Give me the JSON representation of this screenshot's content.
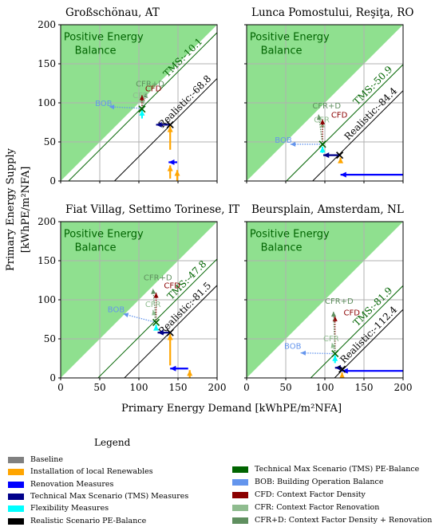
{
  "ylabel_line1": "Primary Energy Supply",
  "ylabel_line2": "[kWhPE/m²NFA]",
  "xlabel": "Primary Energy Demand [kWhPE/m²NFA]",
  "positive_line1": "Positive Energy",
  "positive_line2": "Balance",
  "chart_data": [
    {
      "type": "scatter",
      "title": "Großschönau, AT",
      "xlim": [
        0,
        200
      ],
      "ylim": [
        0,
        200
      ],
      "xticks": [
        "0",
        "50",
        "100",
        "150",
        "200"
      ],
      "yticks": [
        "0",
        "50",
        "100",
        "150",
        "200"
      ],
      "grid": true,
      "tms_label": "TMS:-10.1",
      "realistic_label": "Realistic:-68.8",
      "tms_offset": -10.1,
      "realistic_offset": -68.8,
      "path": [
        {
          "kind": "renewables",
          "from": [
            149,
            0
          ],
          "to": [
            149,
            14
          ]
        },
        {
          "kind": "renewables",
          "from": [
            140,
            3
          ],
          "to": [
            140,
            20
          ]
        },
        {
          "kind": "renovation",
          "from": [
            149,
            24
          ],
          "to": [
            138,
            24
          ]
        },
        {
          "kind": "renewables",
          "from": [
            140,
            40
          ],
          "to": [
            140,
            70
          ]
        },
        {
          "kind": "tms_measures",
          "from": [
            140,
            72
          ],
          "to": [
            122,
            72
          ]
        },
        {
          "kind": "flexibility",
          "from": [
            104,
            80
          ],
          "to": [
            104,
            91
          ]
        }
      ],
      "scenario_points": [
        {
          "kind": "realistic",
          "x": 140,
          "y": 72
        },
        {
          "kind": "tms",
          "x": 104,
          "y": 92
        }
      ],
      "factors": [
        {
          "label": "BOB",
          "kind": "bob",
          "from": [
            104,
            93
          ],
          "to": [
            62,
            95
          ],
          "label_xy": [
            44,
            96
          ]
        },
        {
          "label": "CFR",
          "kind": "cfr",
          "from": [
            104,
            93
          ],
          "to": [
            104,
            107
          ],
          "label_xy": [
            92,
            106
          ]
        },
        {
          "label": "CFD",
          "kind": "cfd",
          "from": [
            104,
            93
          ],
          "to": [
            104,
            110
          ],
          "label_xy": [
            108,
            115
          ]
        },
        {
          "label": "CFR+D",
          "kind": "cfrd",
          "from": [
            104,
            93
          ],
          "to": [
            110,
            113
          ],
          "label_xy": [
            96,
            121
          ]
        }
      ]
    },
    {
      "type": "scatter",
      "title": "Lunca Pomostului, Reşiţa, RO",
      "xlim": [
        0,
        200
      ],
      "ylim": [
        0,
        200
      ],
      "xticks": [
        "0",
        "50",
        "100",
        "150",
        "200"
      ],
      "yticks": [
        "0",
        "50",
        "100",
        "150",
        "200"
      ],
      "grid": true,
      "tms_label": "TMS:-50.9",
      "realistic_label": "Realistic:-84.4",
      "tms_offset": -50.9,
      "realistic_offset": -84.4,
      "path": [
        {
          "kind": "renovation",
          "from": [
            200,
            8
          ],
          "to": [
            120,
            8
          ]
        },
        {
          "kind": "renewables",
          "from": [
            120,
            25
          ],
          "to": [
            120,
            30
          ]
        },
        {
          "kind": "tms_measures",
          "from": [
            118,
            33
          ],
          "to": [
            98,
            33
          ]
        },
        {
          "kind": "flexibility",
          "from": [
            97,
            36
          ],
          "to": [
            97,
            44
          ]
        }
      ],
      "scenario_points": [
        {
          "kind": "realistic",
          "x": 119,
          "y": 33
        },
        {
          "kind": "tms",
          "x": 97,
          "y": 47
        }
      ],
      "factors": [
        {
          "label": "BOB",
          "kind": "bob",
          "from": [
            97,
            47
          ],
          "to": [
            56,
            47
          ],
          "label_xy": [
            36,
            49
          ]
        },
        {
          "label": "CFR",
          "kind": "cfr",
          "from": [
            97,
            47
          ],
          "to": [
            97,
            75
          ],
          "label_xy": [
            86,
            75
          ]
        },
        {
          "label": "CFD",
          "kind": "cfd",
          "from": [
            97,
            47
          ],
          "to": [
            97,
            79
          ],
          "label_xy": [
            108,
            81
          ]
        },
        {
          "label": "CFR+D",
          "kind": "cfrd",
          "from": [
            97,
            47
          ],
          "to": [
            92,
            85
          ],
          "label_xy": [
            84,
            93
          ]
        }
      ]
    },
    {
      "type": "scatter",
      "title": "Fiat Villag, Settimo Torinese, IT",
      "xlim": [
        0,
        200
      ],
      "ylim": [
        0,
        200
      ],
      "xticks": [
        "0",
        "50",
        "100",
        "150",
        "200"
      ],
      "yticks": [
        "0",
        "50",
        "100",
        "150",
        "200"
      ],
      "grid": true,
      "tms_label": "TMS:-47.8",
      "realistic_label": "Realistic:-81.5",
      "tms_offset": -47.8,
      "realistic_offset": -81.5,
      "path": [
        {
          "kind": "renewables",
          "from": [
            165,
            0
          ],
          "to": [
            165,
            10
          ]
        },
        {
          "kind": "renovation",
          "from": [
            163,
            12
          ],
          "to": [
            140,
            12
          ]
        },
        {
          "kind": "renewables",
          "from": [
            140,
            16
          ],
          "to": [
            140,
            56
          ]
        },
        {
          "kind": "tms_measures",
          "from": [
            140,
            58
          ],
          "to": [
            124,
            58
          ]
        },
        {
          "kind": "flexibility",
          "from": [
            122,
            61
          ],
          "to": [
            122,
            68
          ]
        }
      ],
      "scenario_points": [
        {
          "kind": "realistic",
          "x": 140,
          "y": 58
        },
        {
          "kind": "tms",
          "x": 122,
          "y": 71
        }
      ],
      "factors": [
        {
          "label": "BOB",
          "kind": "bob",
          "from": [
            122,
            71
          ],
          "to": [
            80,
            82
          ],
          "label_xy": [
            60,
            84
          ]
        },
        {
          "label": "CFR",
          "kind": "cfr",
          "from": [
            122,
            71
          ],
          "to": [
            118,
            87
          ],
          "label_xy": [
            108,
            91
          ]
        },
        {
          "label": "CFD",
          "kind": "cfd",
          "from": [
            122,
            71
          ],
          "to": [
            122,
            109
          ],
          "label_xy": [
            132,
            115
          ]
        },
        {
          "label": "CFR+D",
          "kind": "cfrd",
          "from": [
            122,
            71
          ],
          "to": [
            118,
            114
          ],
          "label_xy": [
            106,
            125
          ]
        }
      ]
    },
    {
      "type": "scatter",
      "title": "Beursplain, Amsterdam, NL",
      "xlim": [
        0,
        200
      ],
      "ylim": [
        0,
        200
      ],
      "xticks": [
        "0",
        "50",
        "100",
        "150",
        "200"
      ],
      "yticks": [
        "0",
        "50",
        "100",
        "150",
        "200"
      ],
      "grid": true,
      "tms_label": "TMS:-81.9",
      "realistic_label": "Realistic:-112.4",
      "tms_offset": -81.9,
      "realistic_offset": -112.4,
      "path": [
        {
          "kind": "renovation",
          "from": [
            200,
            9
          ],
          "to": [
            122,
            9
          ]
        },
        {
          "kind": "renewables",
          "from": [
            122,
            4
          ],
          "to": [
            122,
            7
          ]
        },
        {
          "kind": "tms_measures",
          "from": [
            122,
            13
          ],
          "to": [
            113,
            13
          ]
        },
        {
          "kind": "flexibility",
          "from": [
            113,
            19
          ],
          "to": [
            113,
            29
          ]
        }
      ],
      "scenario_points": [
        {
          "kind": "realistic",
          "x": 122,
          "y": 11
        },
        {
          "kind": "tms",
          "x": 113,
          "y": 31
        }
      ],
      "factors": [
        {
          "label": "BOB",
          "kind": "bob",
          "from": [
            113,
            31
          ],
          "to": [
            69,
            32
          ],
          "label_xy": [
            48,
            37
          ]
        },
        {
          "label": "CFR",
          "kind": "cfr",
          "from": [
            113,
            31
          ],
          "to": [
            109,
            45
          ],
          "label_xy": [
            98,
            47
          ]
        },
        {
          "label": "CFD",
          "kind": "cfd",
          "from": [
            113,
            31
          ],
          "to": [
            113,
            79
          ],
          "label_xy": [
            124,
            80
          ]
        },
        {
          "label": "CFR+D",
          "kind": "cfrd",
          "from": [
            113,
            31
          ],
          "to": [
            111,
            85
          ],
          "label_xy": [
            100,
            95
          ]
        }
      ]
    }
  ],
  "legend": {
    "title": "Legend",
    "items": [
      {
        "label": "Baseline",
        "color": "#808080",
        "column": 0
      },
      {
        "label": "Installation of local Renewables",
        "color": "#ffa500",
        "column": 0
      },
      {
        "label": "Renovation Measures",
        "color": "#0000ff",
        "column": 0
      },
      {
        "label": "Technical Max Scenario (TMS) Measures",
        "color": "#00008b",
        "column": 0
      },
      {
        "label": "Flexibility Measures",
        "color": "#00ffff",
        "column": 0
      },
      {
        "label": "Realistic Scenario PE-Balance",
        "color": "#000000",
        "column": 0
      },
      {
        "label": "Technical Max Scenario (TMS) PE-Balance",
        "color": "#006400",
        "column": 1
      },
      {
        "label": "BOB: Building Operation Balance",
        "color": "#6495ed",
        "column": 1
      },
      {
        "label": "CFD: Context Factor Density",
        "color": "#8b0000",
        "column": 1
      },
      {
        "label": "CFR: Context Factor Renovation",
        "color": "#8fbc8f",
        "column": 1
      },
      {
        "label": "CFR+D: Context Factor Density + Renovation",
        "color": "#5f8f5f",
        "column": 1
      }
    ]
  }
}
